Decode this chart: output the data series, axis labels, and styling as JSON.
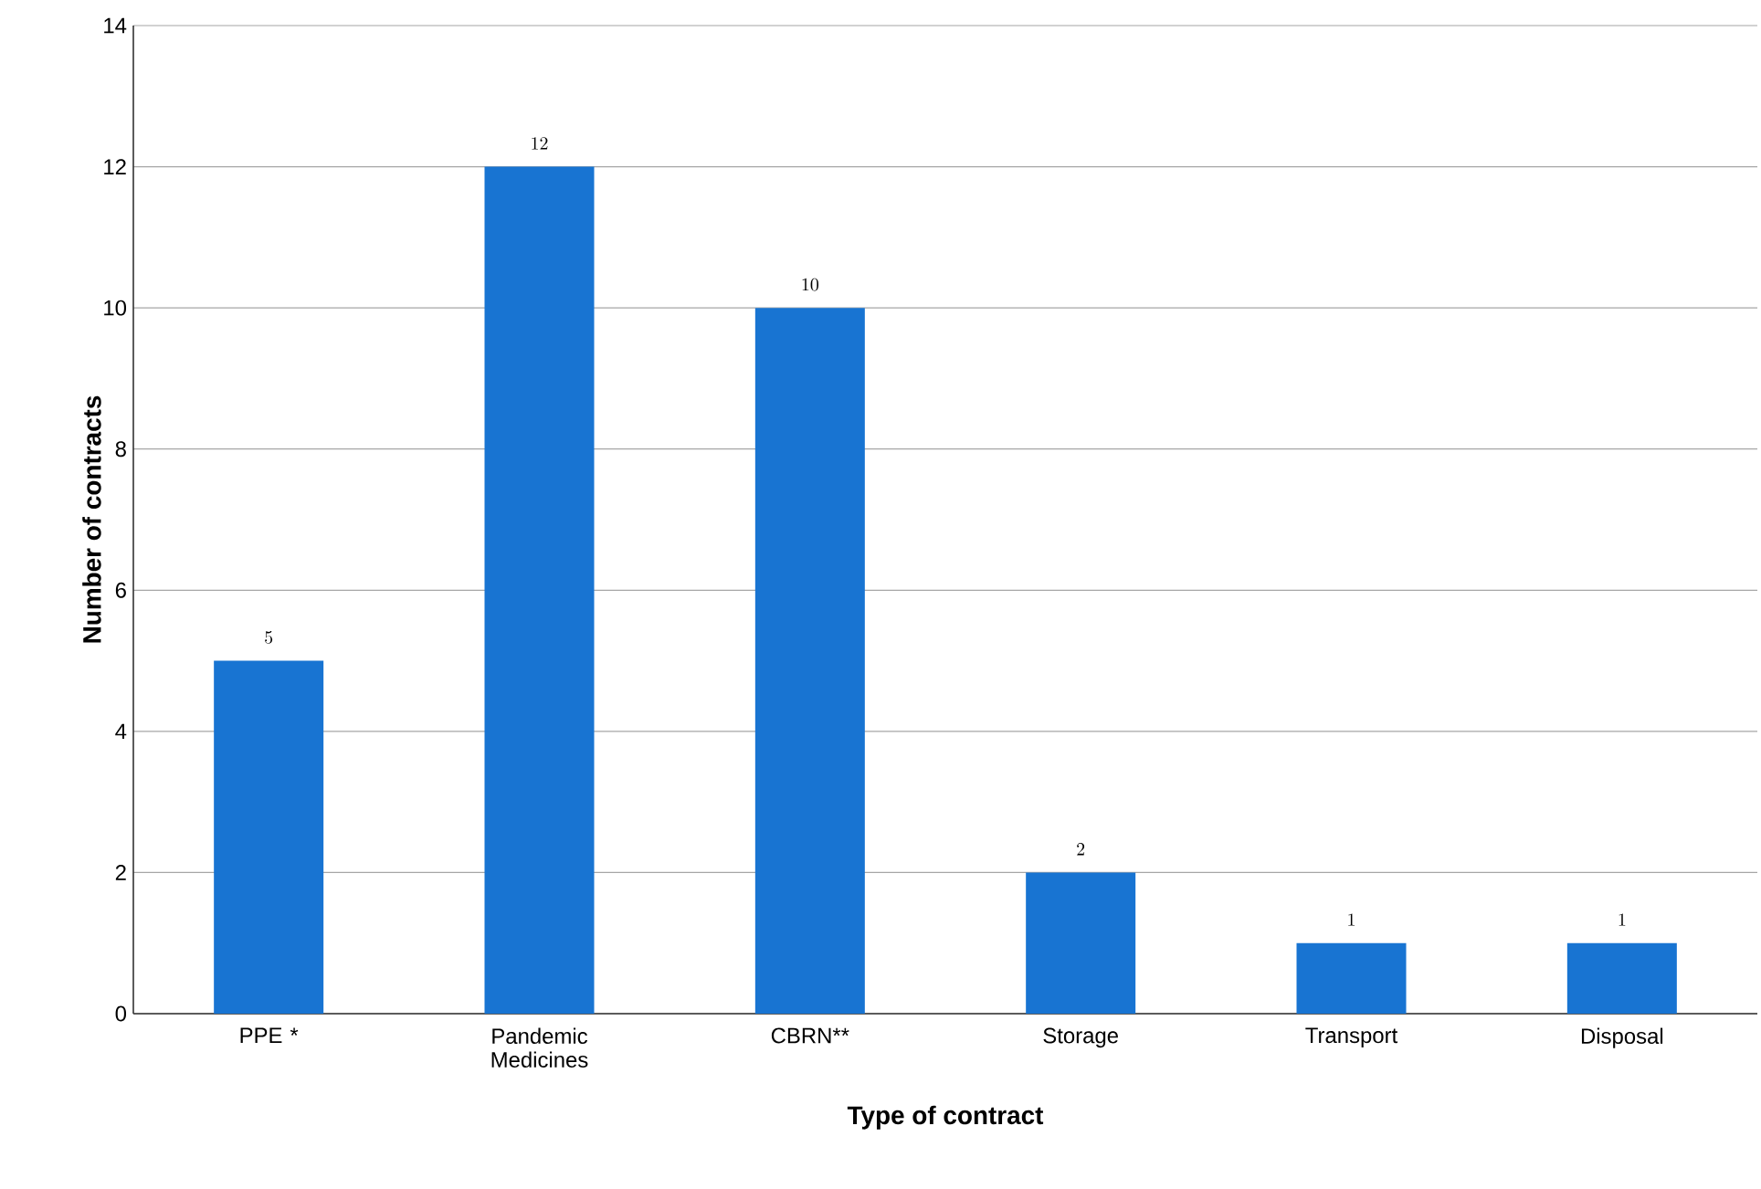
{
  "chart_data": {
    "type": "bar",
    "xlabel": "Type of contract",
    "ylabel": "Number of contracts",
    "categories": [
      "PPE *",
      "Pandemic Medicines",
      "CBRN**",
      "Storage",
      "Transport",
      "Disposal"
    ],
    "values": [
      5,
      12,
      10,
      2,
      1,
      1
    ],
    "color": "#1874d2",
    "ylim": [
      0,
      14
    ],
    "yticks": [
      0,
      2,
      4,
      6,
      8,
      10,
      12,
      14
    ],
    "grid": "y",
    "data_labels": true
  }
}
